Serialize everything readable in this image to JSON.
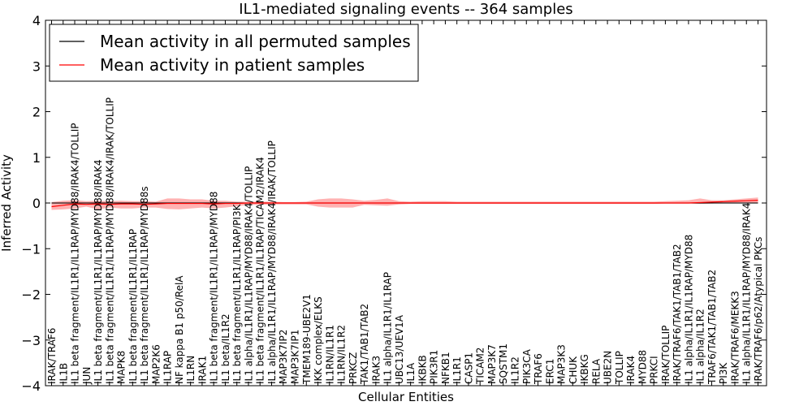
{
  "chart_data": {
    "type": "line",
    "title": "IL1-mediated signaling events -- 364 samples",
    "xlabel": "Cellular Entities",
    "ylabel": "Inferred Activity",
    "ylim": [
      -4,
      4
    ],
    "yticks": [
      -4,
      -3,
      -2,
      -1,
      0,
      1,
      2,
      3,
      4
    ],
    "ytick_labels": [
      "−4",
      "−3",
      "−2",
      "−1",
      "0",
      "1",
      "2",
      "3",
      "4"
    ],
    "legend": {
      "position": "top-left",
      "entries": [
        {
          "label": "Mean activity in all permuted samples",
          "color": "#000000"
        },
        {
          "label": "Mean activity in patient samples",
          "color": "#ff0000"
        }
      ]
    },
    "categories": [
      "IRAK/TRAF6",
      "IL1B",
      "IL1 beta fragment/IL1R1/IL1RAP/MYD88/IRAK4/TOLLIP",
      "JUN",
      "IL1 beta fragment/IL1R1/IL1RAP/MYD88/IRAK4",
      "IL1 beta fragment/IL1R1/IL1RAP/MYD88/IRAK4/IRAK/TOLLIP",
      "MAPK8",
      "IL1 beta fragment/IL1R1/IL1RAP",
      "IL1 beta fragment/IL1R1/IL1RAP/MYD88s",
      "MAP2K6",
      "IL1RAP",
      "NF kappa B1 p50/RelA",
      "IL1RN",
      "IRAK1",
      "IL1 beta fragment/IL1R1/IL1RAP/MYD88",
      "IL1 beta/IL1R2",
      "IL1 beta fragment/IL1R1/IL1RAP/PI3K",
      "IL1 alpha/IL1R1/IL1RAP/MYD88/IRAK4/TOLLIP",
      "IL1 beta fragment/IL1R1/IL1RAP/TICAM2/IRAK4",
      "IL1 alpha/IL1R1/IL1RAP/MYD88/IRAK4/IRAK/TOLLIP",
      "MAP3K7IP2",
      "MAP3K7IP1",
      "TMEM189-UBE2V1",
      "IKK complex/ELKS",
      "IL1RN/IL1R1",
      "IL1RN/IL1R2",
      "PRKCZ",
      "TAK1/TAB1/TAB2",
      "IRAK3",
      "IL1 alpha/IL1R1/IL1RAP",
      "UBC13/UEV1A",
      "IL1A",
      "IKBKB",
      "PIK3R1",
      "NFKB1",
      "IL1R1",
      "CASP1",
      "TICAM2",
      "MAP3K7",
      "SQSTM1",
      "IL1R2",
      "PIK3CA",
      "TRAF6",
      "ERC1",
      "MAP3K3",
      "CHUK",
      "IKBKG",
      "RELA",
      "UBE2N",
      "TOLLIP",
      "IRAK4",
      "MYD88",
      "PRKCI",
      "IRAK/TOLLIP",
      "IRAK/TRAF6/TAK1/TAB1/TAB2",
      "IL1 alpha/IL1R1/IL1RAP/MYD88",
      "IL1 alpha/IL1R2",
      "TRAF6/TAK1/TAB1/TAB2",
      "PI3K",
      "IRAK/TRAF6/MEKK3",
      "IL1 alpha/IL1R1/IL1RAP/MYD88/IRAK4",
      "IRAK/TRAF6/p62/Atypical PKCs"
    ],
    "series": [
      {
        "name": "Mean activity in all permuted samples",
        "color": "#000000",
        "values": [
          0,
          0,
          0,
          0,
          0,
          0,
          0,
          0,
          0,
          0,
          0,
          0,
          0,
          0,
          0,
          0,
          0,
          0,
          0,
          0,
          0,
          0,
          0,
          0,
          0,
          0,
          0,
          0,
          0,
          0,
          0,
          0,
          0,
          0,
          0,
          0,
          0,
          0,
          0,
          0,
          0,
          0,
          0,
          0,
          0,
          0,
          0,
          0,
          0,
          0,
          0,
          0,
          0,
          0,
          0,
          0,
          0,
          0,
          0,
          0,
          0,
          0
        ]
      },
      {
        "name": "Mean activity in patient samples",
        "color": "#ff0000",
        "values": [
          -0.08,
          -0.05,
          -0.02,
          -0.03,
          -0.02,
          -0.03,
          -0.02,
          -0.02,
          -0.03,
          -0.02,
          -0.01,
          -0.01,
          -0.01,
          -0.01,
          -0.02,
          -0.01,
          -0.01,
          0,
          0,
          0,
          0,
          0,
          0,
          0,
          0,
          0,
          0,
          0,
          0,
          0,
          0,
          0,
          0,
          0,
          0,
          0,
          0,
          0,
          0,
          0,
          0,
          0,
          0,
          0,
          0,
          0,
          0,
          0,
          0,
          0,
          0,
          0,
          0,
          0,
          0,
          0,
          0.01,
          0.02,
          0.03,
          0.04,
          0.05,
          0.06
        ],
        "band_upper": [
          0.02,
          0.05,
          0.06,
          0.04,
          0.05,
          0.04,
          0.05,
          0.04,
          0.04,
          0.03,
          0.1,
          0.1,
          0.08,
          0.08,
          0.05,
          0.05,
          0.03,
          0.03,
          0.03,
          0.03,
          0.02,
          0.02,
          0.03,
          0.08,
          0.1,
          0.1,
          0.08,
          0.05,
          0.07,
          0.1,
          0.04,
          0.03,
          0.04,
          0.04,
          0.04,
          0.03,
          0.03,
          0.03,
          0.03,
          0.03,
          0.03,
          0.03,
          0.03,
          0.03,
          0.03,
          0.03,
          0.03,
          0.03,
          0.03,
          0.03,
          0.03,
          0.03,
          0.03,
          0.04,
          0.05,
          0.06,
          0.1,
          0.06,
          0.06,
          0.08,
          0.1,
          0.12
        ],
        "band_lower": [
          -0.15,
          -0.14,
          -0.12,
          -0.08,
          -0.14,
          -0.1,
          -0.12,
          -0.12,
          -0.1,
          -0.1,
          -0.13,
          -0.14,
          -0.12,
          -0.1,
          -0.12,
          -0.1,
          -0.07,
          -0.04,
          -0.04,
          -0.03,
          -0.03,
          -0.03,
          -0.03,
          -0.08,
          -0.1,
          -0.1,
          -0.1,
          -0.04,
          -0.05,
          -0.06,
          -0.03,
          -0.02,
          -0.02,
          -0.02,
          -0.02,
          -0.02,
          -0.02,
          -0.02,
          -0.02,
          -0.02,
          -0.02,
          -0.02,
          -0.02,
          -0.02,
          -0.02,
          -0.02,
          -0.02,
          -0.02,
          -0.02,
          -0.02,
          -0.02,
          -0.02,
          -0.02,
          -0.01,
          -0.01,
          -0.01,
          -0.02,
          -0.01,
          0,
          0,
          0,
          0
        ]
      }
    ]
  }
}
